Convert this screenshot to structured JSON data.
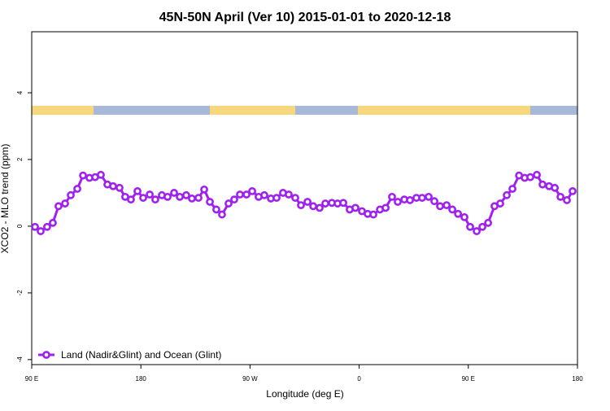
{
  "chart_data": {
    "type": "line",
    "title": "45N-50N April (Ver 10)   2015-01-01 to 2020-12-18",
    "x_label": "Longitude (deg E)",
    "y_label": "XCO2 - MLO trend (ppm)",
    "xlim": [
      90,
      540
    ],
    "ylim": [
      -4.15,
      5.83
    ],
    "xticks": [
      {
        "value": 90,
        "label": "90 E"
      },
      {
        "value": 180,
        "label": "180"
      },
      {
        "value": 270,
        "label": "90 W"
      },
      {
        "value": 360,
        "label": "0"
      },
      {
        "value": 450,
        "label": "90 E"
      },
      {
        "value": 540,
        "label": "180"
      }
    ],
    "yticks": [
      -4,
      -2,
      0,
      2,
      4
    ],
    "legend": "bottom-left",
    "x": [
      92.7,
      97.4,
      102.7,
      107.4,
      112.1,
      117.5,
      122.2,
      127.6,
      132.3,
      137.6,
      142.3,
      147,
      152.4,
      157.1,
      162.4,
      167.1,
      171.8,
      177.2,
      181.9,
      187.3,
      191.9,
      197.3,
      202,
      207.4,
      212.1,
      217.4,
      222.1,
      227.5,
      232.2,
      236.9,
      242.2,
      246.9,
      252.3,
      257,
      261.7,
      267.1,
      271.8,
      277.1,
      281.8,
      287.2,
      291.9,
      297.2,
      301.9,
      307.3,
      312,
      317.4,
      322.1,
      327.4,
      332.1,
      337.5,
      342.2,
      346.9,
      352.2,
      356.9,
      362.3,
      367,
      371.7,
      377.1,
      381.8,
      387.1,
      391.8,
      397.2,
      401.9,
      407.2,
      411.9,
      417.3,
      422,
      426.7,
      432.1,
      436.8,
      441.5,
      446.8,
      451.5,
      456.9,
      461.6,
      466.3,
      471.6,
      476.3,
      481.7,
      486.4,
      491.8,
      496.5,
      501.1,
      506.5,
      511.2,
      516.6,
      521.3,
      526,
      531.3,
      536
    ],
    "series": [
      {
        "name": "Land (Nadir&Glint) and Ocean (Glint)",
        "color": "#a020f0",
        "values": [
          -0.02,
          -0.15,
          -0.02,
          0.1,
          0.6,
          0.68,
          0.93,
          1.12,
          1.52,
          1.45,
          1.47,
          1.54,
          1.25,
          1.2,
          1.15,
          0.88,
          0.8,
          1.05,
          0.85,
          0.95,
          0.8,
          0.93,
          0.88,
          1.0,
          0.88,
          0.93,
          0.83,
          0.85,
          1.1,
          0.73,
          0.5,
          0.35,
          0.68,
          0.8,
          0.95,
          0.95,
          1.05,
          0.88,
          0.93,
          0.83,
          0.85,
          1.0,
          0.95,
          0.85,
          0.63,
          0.73,
          0.6,
          0.55,
          0.68,
          0.7,
          0.68,
          0.7,
          0.5,
          0.55,
          0.45,
          0.37,
          0.35,
          0.5,
          0.55,
          0.88,
          0.73,
          0.8,
          0.78,
          0.85,
          0.85,
          0.88,
          0.75,
          0.6,
          0.63,
          0.5,
          0.37,
          0.27,
          -0.02,
          -0.15,
          -0.02,
          0.1,
          0.6,
          0.68,
          0.93,
          1.12,
          1.52,
          1.45,
          1.47,
          1.54,
          1.25,
          1.2,
          1.15,
          0.88,
          0.78,
          1.05
        ]
      }
    ]
  }
}
